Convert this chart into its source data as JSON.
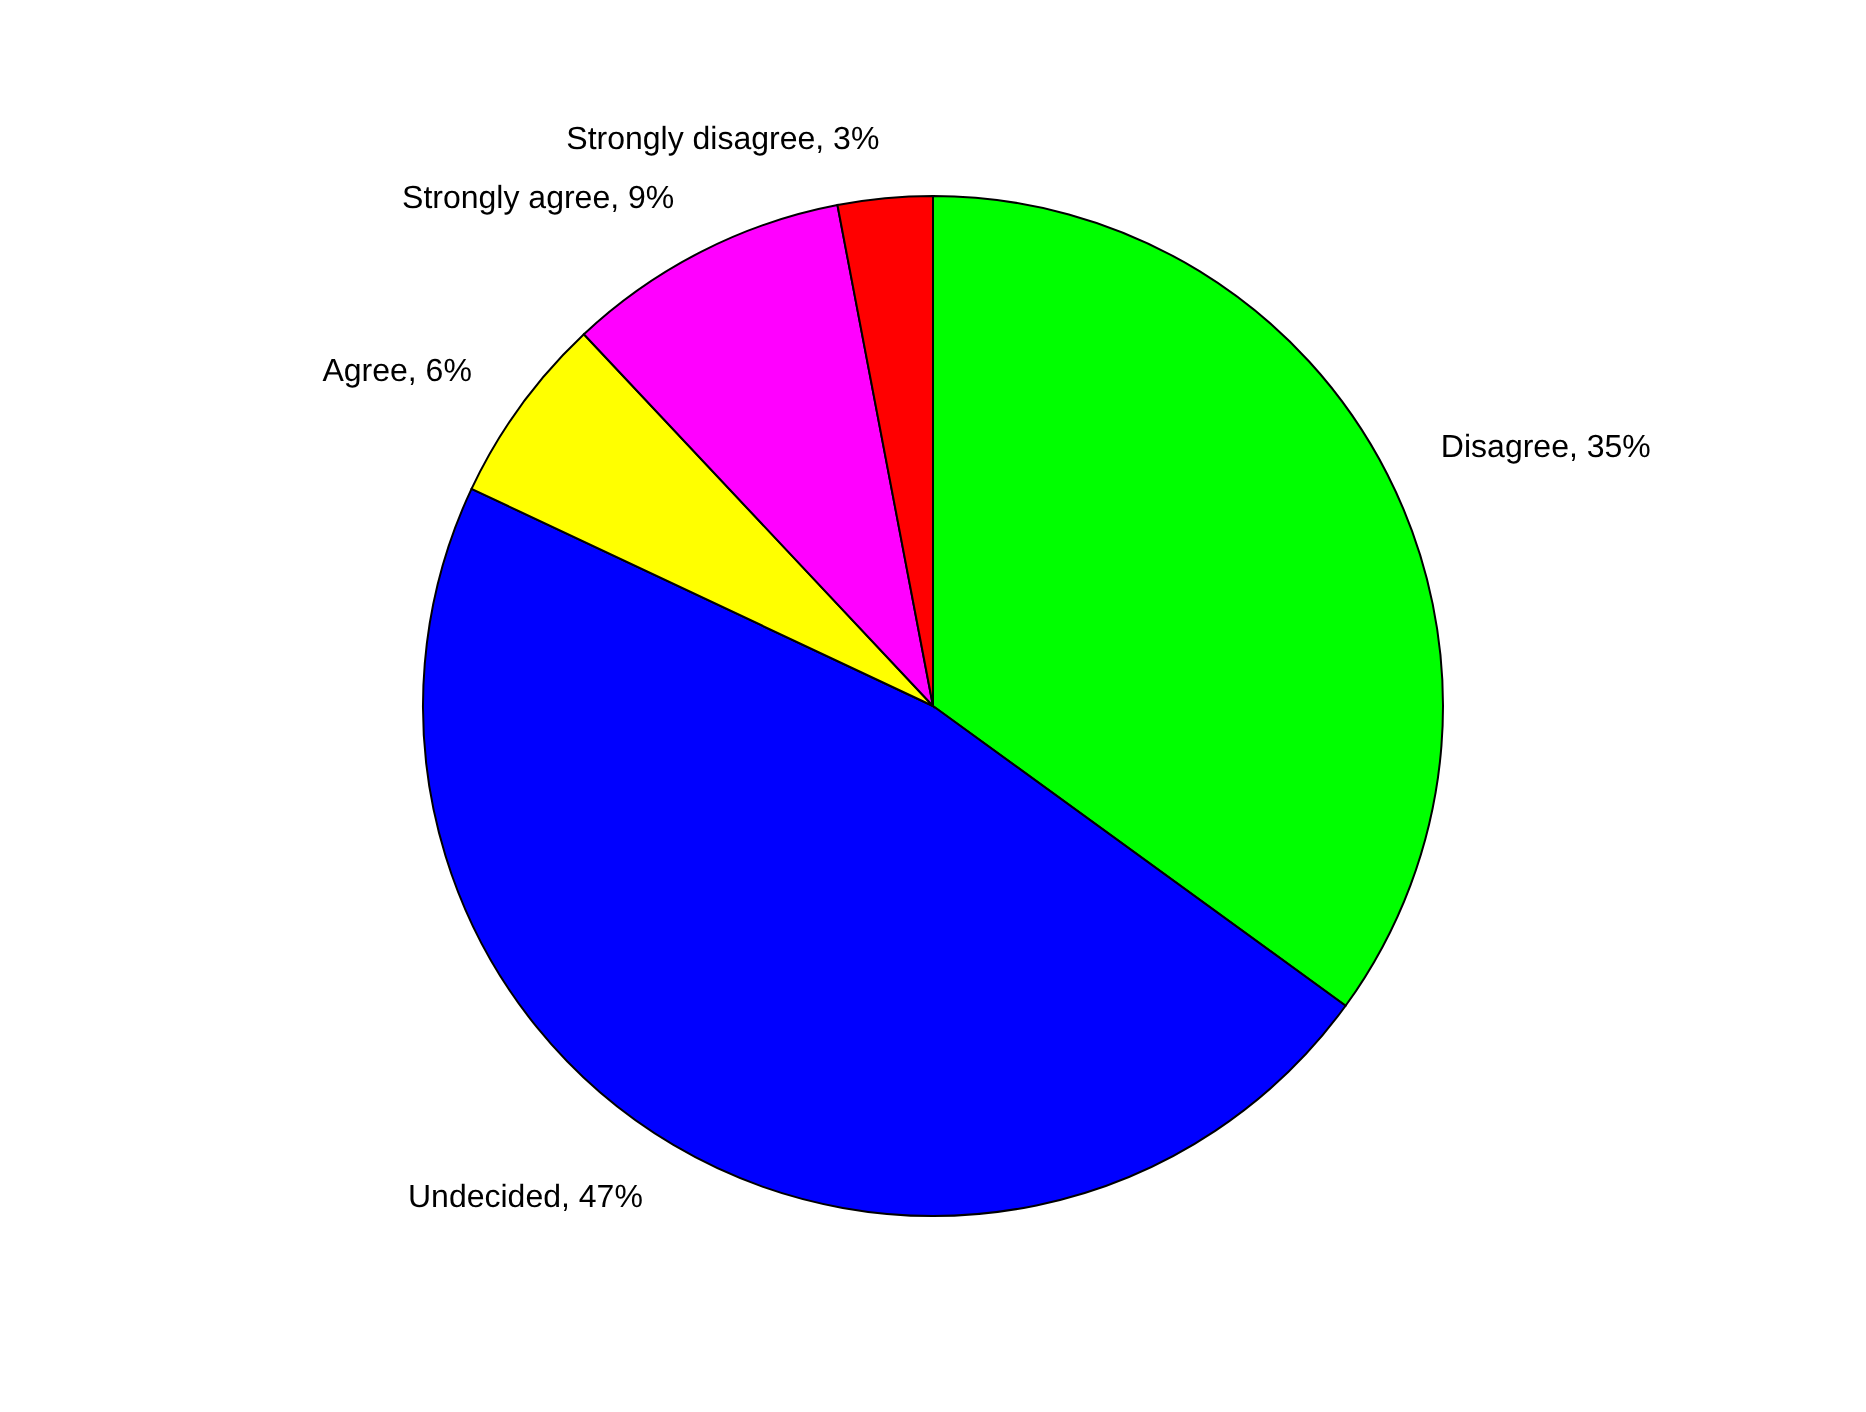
{
  "chart_data": {
    "type": "pie",
    "categories": [
      "Disagree",
      "Undecided",
      "Agree",
      "Strongly agree",
      "Strongly disagree"
    ],
    "values": [
      35,
      47,
      6,
      9,
      3
    ],
    "colors": [
      "#00ff00",
      "#0000ff",
      "#ffff00",
      "#ff00ff",
      "#ff0000"
    ],
    "value_labels": [
      "35%",
      "47%",
      "6%",
      "9%",
      "3%"
    ]
  }
}
